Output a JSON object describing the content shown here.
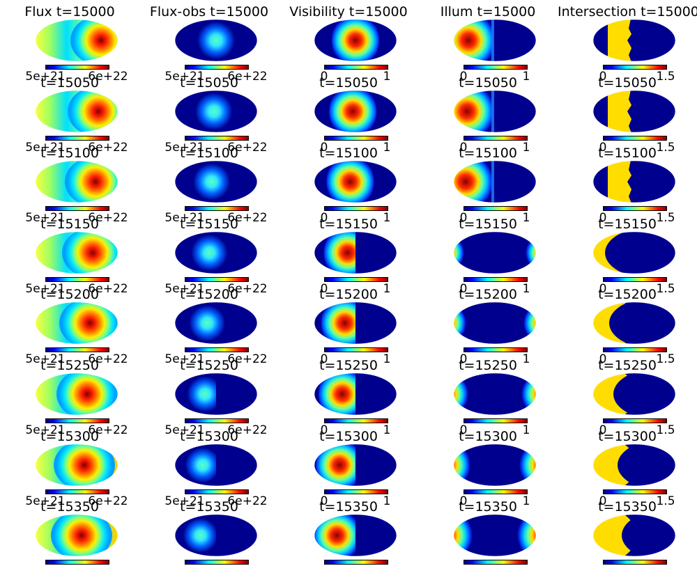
{
  "chart_data": {
    "type": "heatmap",
    "projection": "mollweide",
    "colormap": "jet",
    "columns": [
      {
        "key": "flux",
        "first_title": "Flux t=15000",
        "cbar_ticks": [
          "5e+21",
          "6e+22"
        ]
      },
      {
        "key": "flux_obs",
        "first_title": "Flux-obs t=15000",
        "cbar_ticks": [
          "5e+21",
          "6e+22"
        ]
      },
      {
        "key": "visibility",
        "first_title": "Visibility t=15000",
        "cbar_ticks": [
          "0",
          "1"
        ]
      },
      {
        "key": "illum",
        "first_title": "Illum t=15000",
        "cbar_ticks": [
          "0",
          "1"
        ]
      },
      {
        "key": "intersection",
        "first_title": "Intersection t=15000",
        "cbar_ticks": [
          "0",
          "1.5"
        ]
      }
    ],
    "rows": [
      {
        "t": 15000,
        "title": "t=15000"
      },
      {
        "t": 15050,
        "title": "t=15050"
      },
      {
        "t": 15100,
        "title": "t=15100"
      },
      {
        "t": 15150,
        "title": "t=15150"
      },
      {
        "t": 15200,
        "title": "t=15200"
      },
      {
        "t": 15250,
        "title": "t=15250"
      },
      {
        "t": 15300,
        "title": "t=15300"
      },
      {
        "t": 15350,
        "title": "t=15350"
      }
    ]
  }
}
